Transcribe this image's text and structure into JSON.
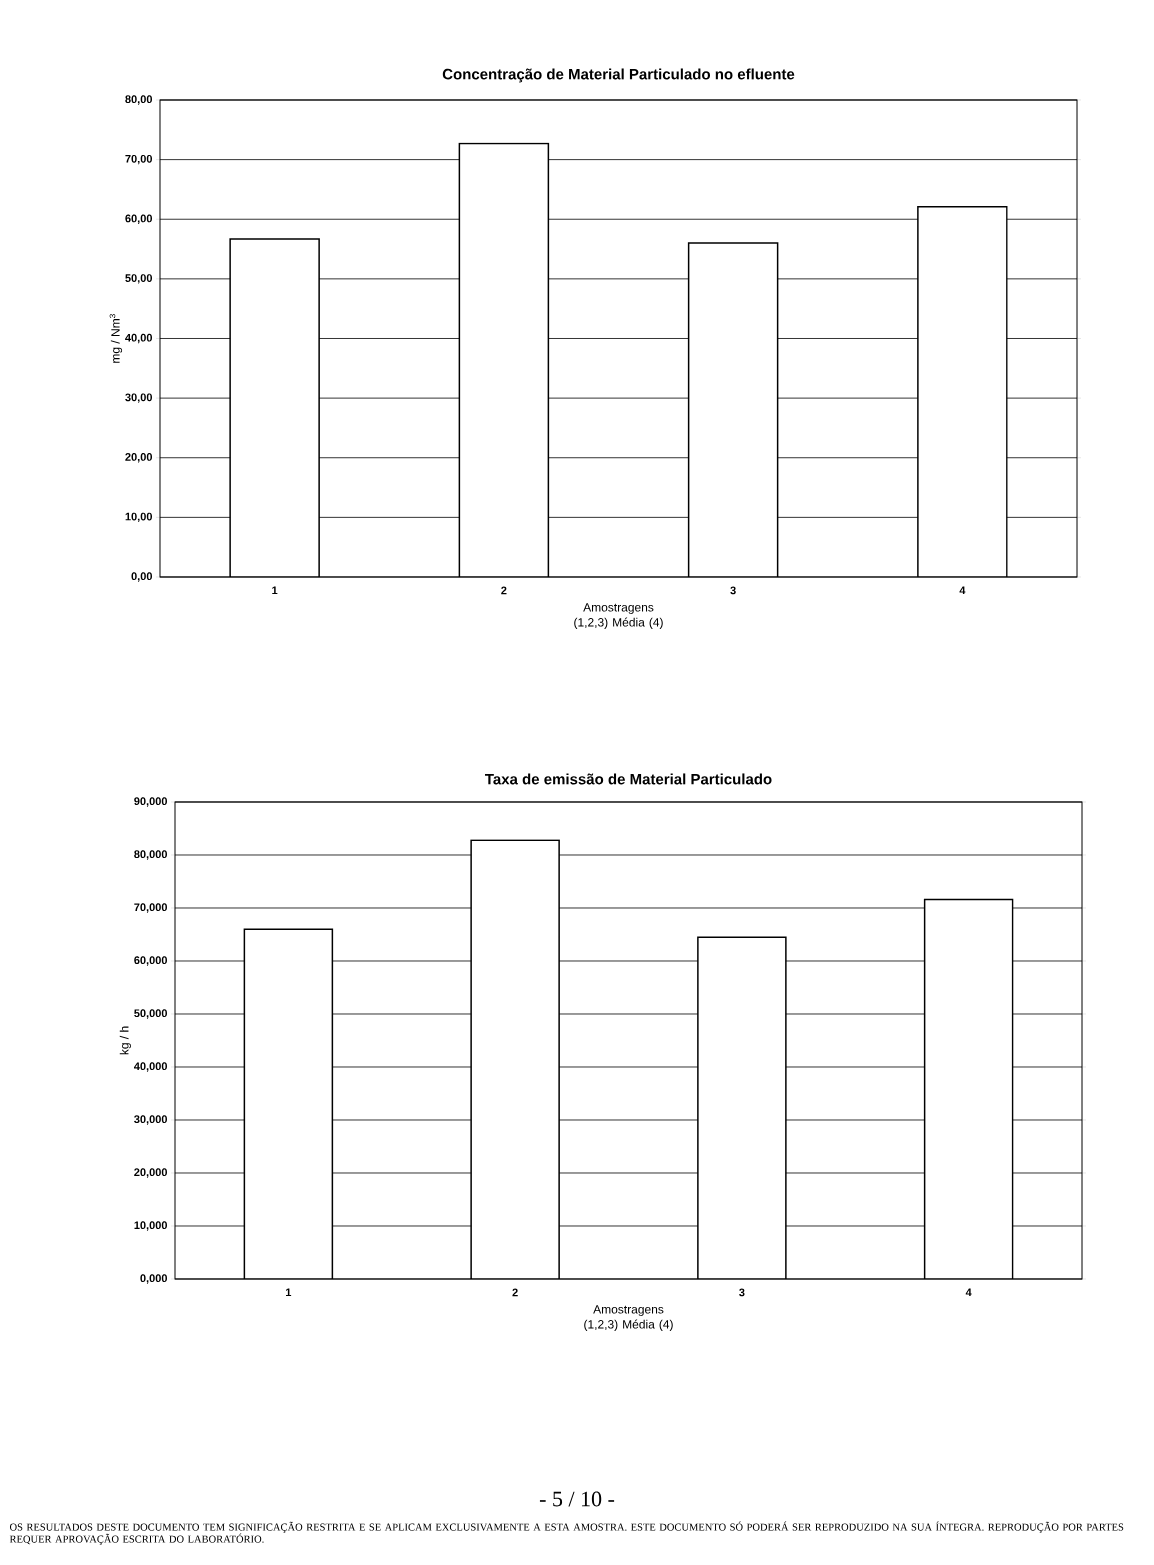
{
  "chart_data": [
    {
      "type": "bar",
      "title": "Concentração de Material Particulado no efluente",
      "xlabel": "Amostragens (1,2,3) Média (4)",
      "ylabel": "mg / Nm$^{3}$",
      "categories": [
        "1",
        "2",
        "3",
        "4"
      ],
      "values": [
        56.7,
        72.7,
        56.0,
        62.1
      ],
      "color": "#ffffff",
      "ylim": [
        0,
        80
      ],
      "yticks": [
        {
          "value": 0,
          "label": "0,00"
        },
        {
          "value": 10,
          "label": "10,00"
        },
        {
          "value": 20,
          "label": "20,00"
        },
        {
          "value": 30,
          "label": "30,00"
        },
        {
          "value": 40,
          "label": "40,00"
        },
        {
          "value": 50,
          "label": "50,00"
        },
        {
          "value": 60,
          "label": "60,00"
        },
        {
          "value": 70,
          "label": "70,00"
        },
        {
          "value": 80,
          "label": "80,00"
        }
      ],
      "grid": "y"
    },
    {
      "type": "bar",
      "title": "Taxa de emissão de Material Particulado",
      "xlabel": "Amostragens (1,2,3) Média (4)",
      "ylabel": "kg / h",
      "categories": [
        "1",
        "2",
        "3",
        "4"
      ],
      "values": [
        66.0,
        82.8,
        64.5,
        71.6
      ],
      "color": "#ffffff",
      "ylim": [
        0,
        90
      ],
      "yticks": [
        {
          "value": 0,
          "label": "0,000"
        },
        {
          "value": 10,
          "label": "10,000"
        },
        {
          "value": 20,
          "label": "20,000"
        },
        {
          "value": 30,
          "label": "30,000"
        },
        {
          "value": 40,
          "label": "40,000"
        },
        {
          "value": 50,
          "label": "50,000"
        },
        {
          "value": 60,
          "label": "60,000"
        },
        {
          "value": 70,
          "label": "70,000"
        },
        {
          "value": 80,
          "label": "80,000"
        },
        {
          "value": 90,
          "label": "90,000"
        }
      ],
      "grid": "y",
      "annotations": [
        "- 5 / 10 -",
        "OS RESULTADOS DESTE DOCUMENTO TEM SIGNIFICAÇÃO RESTRITA E SE APLICAM EXCLUSIVAMENTE A ESTA AMOSTRA. ESTE DOCUMENTO SÓ PODERÁ SER REPRODUZIDO NA SUA ÍNTEGRA. REPRODUÇÃO POR PARTES REQUER APROVAÇÃO ESCRITA DO LABORATÓRIO."
      ]
    }
  ]
}
